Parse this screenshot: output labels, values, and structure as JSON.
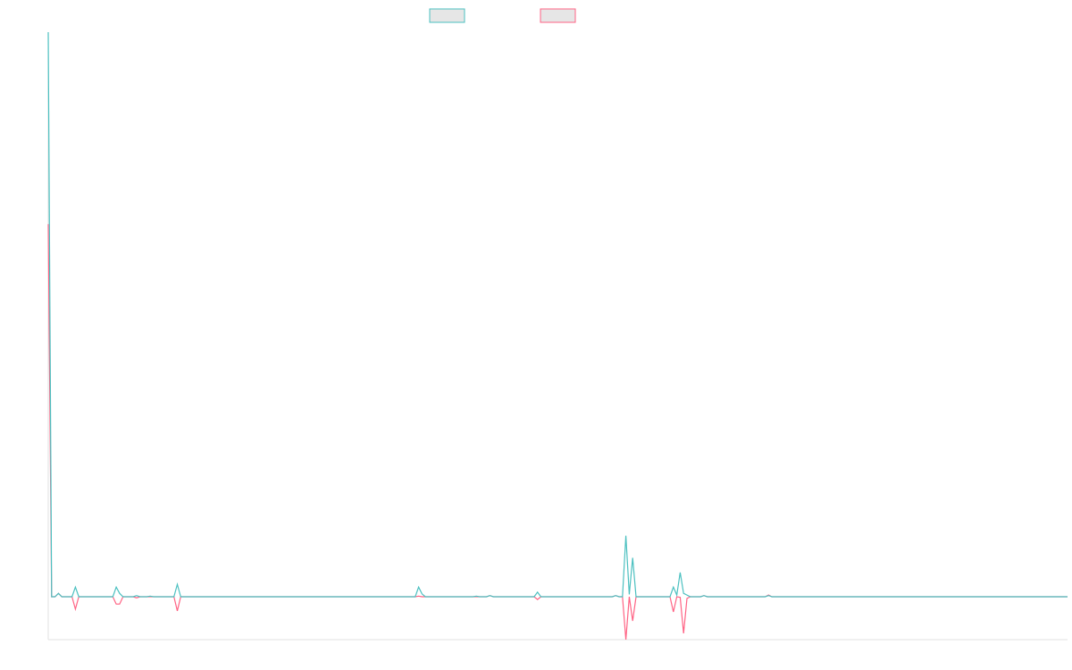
{
  "chart_data": {
    "type": "line",
    "title": "",
    "xlabel": "",
    "ylabel": "",
    "x_count": 301,
    "ylim": [
      -0.076,
      1.0
    ],
    "grid": false,
    "legend_position": "top",
    "colors": {
      "series_a": "#4bc0c0",
      "series_b": "#ff6384",
      "legend_fill": "#e6e6e6",
      "axis": "#e0e0e0"
    },
    "series": [
      {
        "color": "#4bc0c0",
        "points": [
          [
            0,
            1.0
          ],
          [
            3,
            0.006
          ],
          [
            8,
            0.017
          ],
          [
            20,
            0.017
          ],
          [
            21,
            0.006
          ],
          [
            26,
            0.002
          ],
          [
            30,
            0.001
          ],
          [
            38,
            0.022
          ],
          [
            109,
            0.017
          ],
          [
            110,
            0.005
          ],
          [
            126,
            0.001
          ],
          [
            130,
            0.002
          ],
          [
            144,
            0.008
          ],
          [
            167,
            0.002
          ],
          [
            170,
            0.108
          ],
          [
            171,
            0.004
          ],
          [
            172,
            0.069
          ],
          [
            184,
            0.017
          ],
          [
            185,
            0.003
          ],
          [
            186,
            0.043
          ],
          [
            187,
            0.006
          ],
          [
            188,
            0.003
          ],
          [
            193,
            0.002
          ],
          [
            212,
            0.002
          ]
        ]
      },
      {
        "color": "#ff6384",
        "points": [
          [
            0,
            0.66
          ],
          [
            3,
            0.006
          ],
          [
            8,
            -0.022
          ],
          [
            20,
            -0.013
          ],
          [
            21,
            -0.013
          ],
          [
            26,
            -0.002
          ],
          [
            38,
            -0.025
          ],
          [
            109,
            0.001
          ],
          [
            130,
            0.002
          ],
          [
            144,
            -0.005
          ],
          [
            167,
            0.002
          ],
          [
            170,
            -0.076
          ],
          [
            171,
            0.0
          ],
          [
            172,
            -0.043
          ],
          [
            184,
            -0.027
          ],
          [
            185,
            0.0
          ],
          [
            186,
            -0.001
          ],
          [
            187,
            -0.065
          ],
          [
            188,
            -0.003
          ],
          [
            193,
            0.002
          ],
          [
            212,
            0.003
          ]
        ]
      }
    ]
  }
}
